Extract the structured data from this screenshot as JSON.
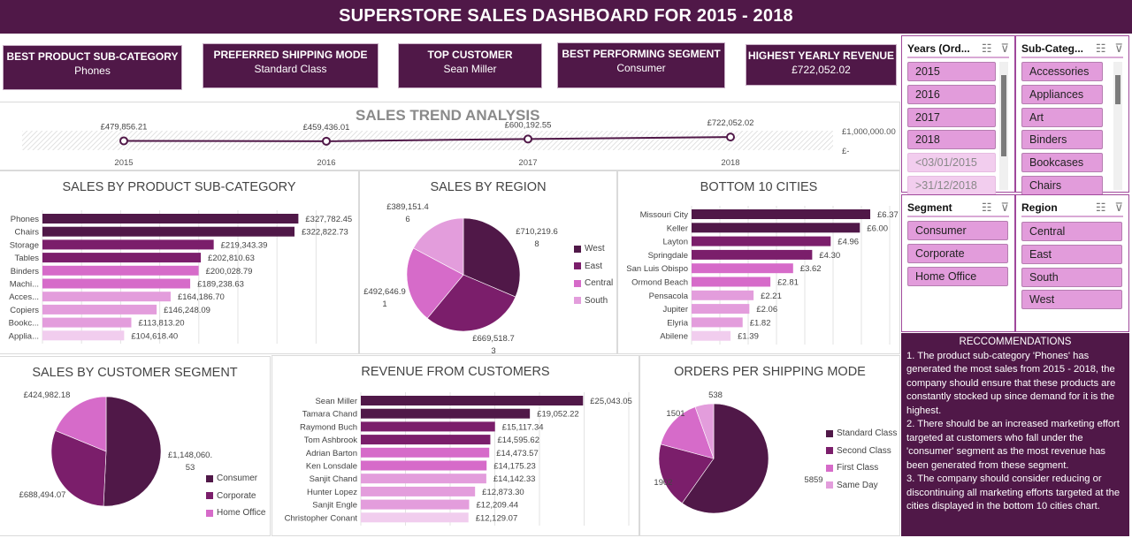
{
  "title": "SUPERSTORE SALES DASHBOARD FOR 2015 - 2018",
  "kpis": [
    {
      "label": "BEST PRODUCT SUB-CATEGORY",
      "value": "Phones"
    },
    {
      "label": "PREFERRED SHIPPING MODE",
      "value": "Standard Class"
    },
    {
      "label": "TOP CUSTOMER",
      "value": "Sean Miller"
    },
    {
      "label": "BEST PERFORMING  SEGMENT",
      "value": "Consumer"
    },
    {
      "label": "HIGHEST YEARLY REVENUE",
      "value": "£722,052.02"
    }
  ],
  "colors": {
    "dark": "#501848",
    "purple": "#7b1e6b",
    "magenta": "#d66bc9",
    "pink": "#e39ddc",
    "light": "#f1cdee"
  },
  "slicers": {
    "years": {
      "title": "Years (Ord...",
      "items": [
        "2015",
        "2016",
        "2017",
        "2018",
        "<03/01/2015",
        ">31/12/2018"
      ]
    },
    "subcategory": {
      "title": "Sub-Categ...",
      "items": [
        "Accessories",
        "Appliances",
        "Art",
        "Binders",
        "Bookcases",
        "Chairs"
      ]
    },
    "segment": {
      "title": "Segment",
      "items": [
        "Consumer",
        "Corporate",
        "Home Office"
      ]
    },
    "region": {
      "title": "Region",
      "items": [
        "Central",
        "East",
        "South",
        "West"
      ]
    },
    "icons": {
      "multiselect": "☰",
      "clear_filter": "⊽"
    }
  },
  "recommendations": {
    "heading": "RECCOMMENDATIONS",
    "items": [
      "1. The product sub-category 'Phones' has generated the most sales from 2015 - 2018, the company should ensure that these products are constantly stocked up since demand for it is the highest.",
      "2. There should be an increased marketing effort targeted at customers who fall under the 'consumer' segment as the most revenue has been generated from these segment.",
      "3. The company should consider reducing or discontinuing all marketing efforts targeted at the cities displayed in the bottom 10 cities chart."
    ]
  },
  "chart_data": [
    {
      "id": "trend",
      "type": "line",
      "title": "SALES TREND ANALYSIS",
      "x": [
        "2015",
        "2016",
        "2017",
        "2018"
      ],
      "values": [
        479856.21,
        459436.01,
        600192.55,
        722052.02
      ],
      "labels": [
        "£479,856.21",
        "£459,436.01",
        "£600,192.55",
        "£722,052.02"
      ],
      "ylim": [
        0,
        1000000
      ],
      "ytick_labels": [
        "£1,000,000.00",
        "£-"
      ]
    },
    {
      "id": "subcat",
      "type": "bar",
      "title": "SALES BY PRODUCT SUB-CATEGORY",
      "categories": [
        "Phones",
        "Chairs",
        "Storage",
        "Tables",
        "Binders",
        "Machi...",
        "Acces...",
        "Copiers",
        "Bookc...",
        "Applia..."
      ],
      "values": [
        327782.45,
        322822.73,
        219343.39,
        202810.63,
        200028.79,
        189238.63,
        164186.7,
        146248.09,
        113813.2,
        104618.4
      ],
      "labels": [
        "£327,782.45",
        "£322,822.73",
        "£219,343.39",
        "£202,810.63",
        "£200,028.79",
        "£189,238.63",
        "£164,186.70",
        "£146,248.09",
        "£113,813.20",
        "£104,618.40"
      ],
      "xlim": [
        0,
        350000
      ]
    },
    {
      "id": "region",
      "type": "pie",
      "title": "SALES BY REGION",
      "categories": [
        "West",
        "East",
        "Central",
        "South"
      ],
      "values": [
        710219.68,
        669518.73,
        492646.91,
        389151.46
      ],
      "labels": [
        "£710,219.6\n8",
        "£669,518.7\n3",
        "£492,646.9\n1",
        "£389,151.4\n6"
      ],
      "legend": "right"
    },
    {
      "id": "cities",
      "type": "bar",
      "title": "BOTTOM 10 CITIES",
      "categories": [
        "Missouri City",
        "Keller",
        "Layton",
        "Springdale",
        "San Luis Obispo",
        "Ormond Beach",
        "Pensacola",
        "Jupiter",
        "Elyria",
        "Abilene"
      ],
      "values": [
        6.37,
        6.0,
        4.96,
        4.3,
        3.62,
        2.81,
        2.21,
        2.06,
        1.82,
        1.39
      ],
      "labels": [
        "£6.37",
        "£6.00",
        "£4.96",
        "£4.30",
        "£3.62",
        "£2.81",
        "£2.21",
        "£2.06",
        "£1.82",
        "£1.39"
      ],
      "xlim": [
        0,
        7
      ]
    },
    {
      "id": "segment",
      "type": "pie",
      "title": "SALES BY CUSTOMER SEGMENT",
      "categories": [
        "Consumer",
        "Corporate",
        "Home Office"
      ],
      "values": [
        1148060.53,
        688494.07,
        424982.18
      ],
      "labels": [
        "£1,148,060.\n53",
        "£688,494.07",
        "£424,982.18"
      ],
      "legend": "right"
    },
    {
      "id": "customers",
      "type": "bar",
      "title": "REVENUE FROM CUSTOMERS",
      "categories": [
        "Sean Miller",
        "Tamara Chand",
        "Raymond Buch",
        "Tom Ashbrook",
        "Adrian Barton",
        "Ken Lonsdale",
        "Sanjit Chand",
        "Hunter Lopez",
        "Sanjit Engle",
        "Christopher Conant"
      ],
      "values": [
        25043.05,
        19052.22,
        15117.34,
        14595.62,
        14473.57,
        14175.23,
        14142.33,
        12873.3,
        12209.44,
        12129.07
      ],
      "labels": [
        "£25,043.05",
        "£19,052.22",
        "£15,117.34",
        "£14,595.62",
        "£14,473.57",
        "£14,175.23",
        "£14,142.33",
        "£12,873.30",
        "£12,209.44",
        "£12,129.07"
      ],
      "xlim": [
        0,
        30000
      ]
    },
    {
      "id": "shipping",
      "type": "pie",
      "title": "ORDERS PER SHIPPING MODE",
      "categories": [
        "Standard Class",
        "Second Class",
        "First Class",
        "Same Day"
      ],
      "values": [
        5859,
        1902,
        1501,
        538
      ],
      "labels": [
        "5859",
        "1902",
        "1501",
        "538"
      ],
      "legend": "right"
    }
  ]
}
